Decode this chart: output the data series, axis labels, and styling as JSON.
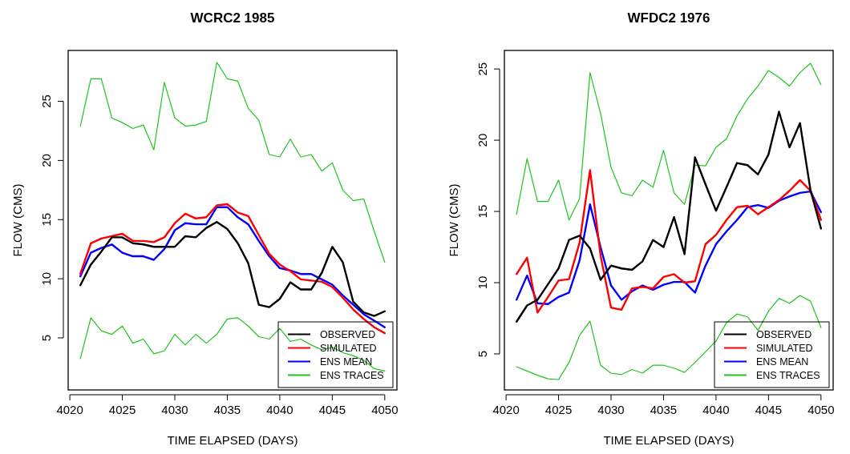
{
  "chart_data": [
    {
      "type": "line",
      "title": "WCRC2 1985",
      "xlabel": "TIME ELAPSED (DAYS)",
      "ylabel": "FLOW (CMS)",
      "xlim": [
        4019.84,
        4051.16
      ],
      "ylim": [
        0.6,
        29.3
      ],
      "xticks": [
        4020,
        4025,
        4030,
        4035,
        4040,
        4045,
        4050
      ],
      "yticks": [
        5,
        10,
        15,
        20,
        25
      ],
      "legend": "bottom right",
      "x": [
        4021,
        4022,
        4023,
        4024,
        4025,
        4026,
        4027,
        4028,
        4029,
        4030,
        4031,
        4032,
        4033,
        4034,
        4035,
        4036,
        4037,
        4038,
        4039,
        4040,
        4041,
        4042,
        4043,
        4044,
        4045,
        4046,
        4047,
        4048,
        4049,
        4050
      ],
      "series": [
        {
          "name": "OBSERVED",
          "color": "#000000",
          "values": [
            9.45,
            11.2,
            12.3,
            13.5,
            13.5,
            13.0,
            12.9,
            12.7,
            12.7,
            12.7,
            13.6,
            13.5,
            14.3,
            14.8,
            14.2,
            13.0,
            11.3,
            7.8,
            7.6,
            8.3,
            9.7,
            9.1,
            9.1,
            10.5,
            12.7,
            11.4,
            8.05,
            7.15,
            6.85,
            7.25
          ]
        },
        {
          "name": "SIMULATED",
          "color": "#ff0000",
          "values": [
            10.4,
            13.0,
            13.4,
            13.6,
            13.8,
            13.2,
            13.2,
            13.1,
            13.5,
            14.7,
            15.5,
            15.1,
            15.2,
            16.2,
            16.3,
            15.6,
            15.3,
            13.7,
            12.1,
            11.2,
            10.65,
            9.95,
            9.85,
            9.75,
            9.3,
            8.4,
            7.4,
            6.6,
            5.9,
            5.4
          ]
        },
        {
          "name": "ENS MEAN",
          "color": "#0000ff",
          "values": [
            10.2,
            12.2,
            12.6,
            12.9,
            12.2,
            11.9,
            11.9,
            11.6,
            12.5,
            14.1,
            14.7,
            14.6,
            14.6,
            16.05,
            16.05,
            15.2,
            14.6,
            13.2,
            11.9,
            10.9,
            10.7,
            10.4,
            10.4,
            9.95,
            9.5,
            8.6,
            7.8,
            7.0,
            6.45,
            5.9
          ]
        },
        {
          "name": "ENS TRACES",
          "color": "#1fc41f",
          "values": [
            22.9,
            26.9,
            26.9,
            23.6,
            23.2,
            22.7,
            23.0,
            20.9,
            26.6,
            23.6,
            22.9,
            23.0,
            23.3,
            28.3,
            26.9,
            26.7,
            24.4,
            23.4,
            20.5,
            20.3,
            21.8,
            20.3,
            20.5,
            19.1,
            19.8,
            17.5,
            16.6,
            16.75,
            14.0,
            11.4
          ]
        },
        {
          "color": "#1fc41f",
          "values": [
            3.25,
            6.7,
            5.6,
            5.3,
            6.0,
            4.55,
            4.9,
            3.65,
            3.9,
            5.3,
            4.4,
            5.3,
            4.55,
            5.3,
            6.6,
            6.7,
            6.0,
            5.1,
            4.9,
            5.8,
            4.7,
            4.9,
            4.4,
            4.0,
            4.2,
            3.75,
            3.5,
            3.1,
            2.4,
            2.2
          ]
        }
      ]
    },
    {
      "type": "line",
      "title": "WFDC2 1976",
      "xlabel": "TIME ELAPSED (DAYS)",
      "ylabel": "FLOW (CMS)",
      "xlim": [
        4019.84,
        4051.16
      ],
      "ylim": [
        2.47,
        26.3
      ],
      "xticks": [
        4020,
        4025,
        4030,
        4035,
        4040,
        4045,
        4050
      ],
      "yticks": [
        5,
        10,
        15,
        20,
        25
      ],
      "legend": "bottom right",
      "x": [
        4021,
        4022,
        4023,
        4024,
        4025,
        4026,
        4027,
        4028,
        4029,
        4030,
        4031,
        4032,
        4033,
        4034,
        4035,
        4036,
        4037,
        4038,
        4039,
        4040,
        4041,
        4042,
        4043,
        4044,
        4045,
        4046,
        4047,
        4048,
        4049,
        4050
      ],
      "series": [
        {
          "name": "OBSERVED",
          "color": "#000000",
          "values": [
            7.26,
            8.4,
            8.8,
            9.9,
            11.0,
            13.0,
            13.3,
            12.4,
            10.2,
            11.2,
            11.0,
            10.9,
            11.5,
            13.0,
            12.5,
            14.6,
            12.0,
            18.8,
            16.9,
            15.05,
            16.7,
            18.4,
            18.25,
            17.6,
            19.0,
            22.0,
            19.5,
            21.2,
            16.5,
            13.8
          ]
        },
        {
          "name": "SIMULATED",
          "color": "#ff0000",
          "values": [
            10.6,
            11.75,
            7.9,
            9.0,
            10.15,
            10.25,
            12.8,
            17.9,
            11.9,
            8.25,
            8.1,
            9.6,
            9.7,
            9.6,
            10.4,
            10.6,
            10.0,
            10.1,
            12.7,
            13.35,
            14.4,
            15.3,
            15.4,
            14.8,
            15.3,
            15.8,
            16.45,
            17.2,
            16.45,
            14.4
          ]
        },
        {
          "name": "ENS MEAN",
          "color": "#0000ff",
          "values": [
            8.8,
            10.5,
            8.55,
            8.5,
            9.0,
            9.3,
            11.55,
            15.5,
            12.5,
            9.8,
            8.8,
            9.4,
            9.8,
            9.5,
            9.85,
            10.05,
            10.05,
            9.3,
            11.2,
            12.7,
            13.6,
            14.4,
            15.3,
            15.45,
            15.25,
            15.75,
            16.05,
            16.3,
            16.4,
            14.95
          ]
        },
        {
          "name": "ENS TRACES",
          "color": "#1fc41f",
          "values": [
            14.8,
            18.7,
            15.7,
            15.7,
            17.2,
            14.4,
            15.9,
            24.75,
            21.9,
            18.1,
            16.3,
            16.1,
            17.2,
            16.7,
            19.3,
            16.3,
            15.5,
            18.25,
            18.2,
            19.5,
            20.1,
            21.7,
            22.9,
            23.8,
            24.9,
            24.4,
            23.8,
            24.75,
            25.4,
            23.9
          ]
        },
        {
          "color": "#1fc41f",
          "values": [
            4.1,
            3.8,
            3.5,
            3.25,
            3.2,
            4.4,
            6.3,
            7.3,
            4.2,
            3.65,
            3.55,
            3.9,
            3.65,
            4.2,
            4.2,
            4.0,
            3.7,
            4.4,
            5.15,
            5.9,
            7.2,
            7.8,
            7.6,
            6.65,
            8.0,
            8.9,
            8.55,
            9.1,
            8.7,
            6.85
          ]
        }
      ]
    }
  ]
}
